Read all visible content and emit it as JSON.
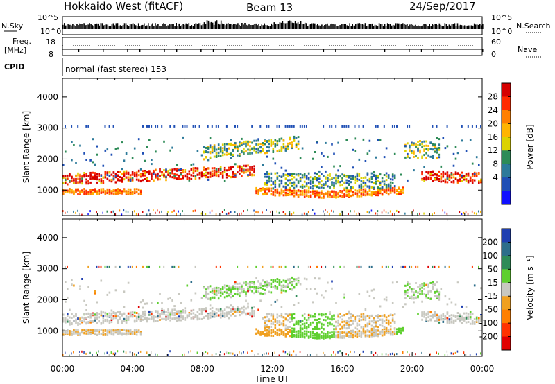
{
  "header": {
    "title": "Hokkaido West (fitACF)",
    "beam": "Beam 13",
    "date": "24/Sep/2017"
  },
  "status_panels": {
    "nsky_label": "N.Sky",
    "nsearch_label": "N.Search",
    "nsky_ticks": [
      "10^5",
      "10^0"
    ],
    "freq_label_line1": "Freq.",
    "freq_label_line2": "[MHz]",
    "freq_ticks": [
      "18",
      "8"
    ],
    "nave_label": "Nave",
    "nave_ticks": [
      "60",
      "0"
    ],
    "cpid_label": "CPID",
    "cpid_text": "normal (fast stereo) 153"
  },
  "chart_data": [
    {
      "type": "heatmap",
      "name": "power",
      "ylabel": "Slant Range [km]",
      "xlabel": "Time UT",
      "x_ticks": [
        "00:00",
        "04:00",
        "08:00",
        "12:00",
        "16:00",
        "20:00",
        "00:00"
      ],
      "x_range_hours": [
        0,
        24
      ],
      "y_ticks": [
        1000,
        2000,
        3000,
        4000
      ],
      "ylim": [
        180,
        4600
      ],
      "colorbar": {
        "label": "Power [dB]",
        "ticks": [
          "28",
          "24",
          "20",
          "16",
          "12",
          "8",
          "4"
        ],
        "colors": [
          "#d50000",
          "#ff2a00",
          "#ff7f00",
          "#ffb400",
          "#dcd200",
          "#2e8b57",
          "#2d7a9a",
          "#1f4fb5",
          "#1010ff"
        ]
      }
    },
    {
      "type": "heatmap",
      "name": "velocity",
      "ylabel": "Slant Range [km]",
      "xlabel": "Time UT",
      "x_ticks": [
        "00:00",
        "04:00",
        "08:00",
        "12:00",
        "16:00",
        "20:00",
        "00:00"
      ],
      "x_range_hours": [
        0,
        24
      ],
      "y_ticks": [
        1000,
        2000,
        3000,
        4000
      ],
      "ylim": [
        180,
        4600
      ],
      "colorbar": {
        "label": "Velocity [m s⁻¹]",
        "ticks": [
          "200",
          "100",
          "50",
          "15",
          "-15",
          "-50",
          "-100",
          "-200"
        ],
        "colors": [
          "#1f3fb0",
          "#2d6e8a",
          "#2e8b57",
          "#5fcf2f",
          "#c8c8c0",
          "#f0a020",
          "#ff7f00",
          "#ff3300",
          "#e00000"
        ]
      }
    }
  ],
  "colors": {
    "ground_scatter": "#c8c8c0"
  }
}
